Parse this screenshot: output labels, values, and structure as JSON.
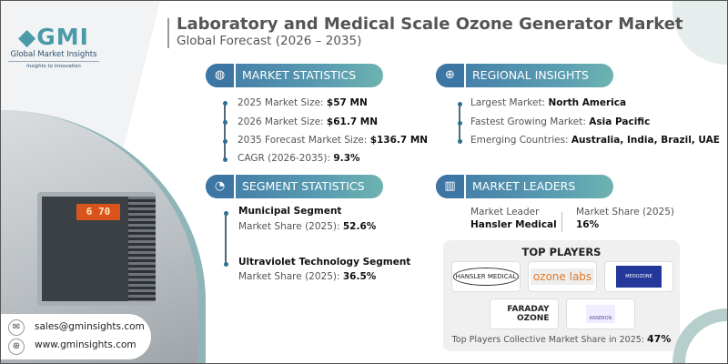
{
  "brand": {
    "logo_mark": "GMI",
    "name": "Global Market Insights",
    "tagline": "Insights to Innovation"
  },
  "header": {
    "title": "Laboratory and Medical Scale Ozone Generator Market",
    "subtitle": "Global Forecast (2026 – 2035)"
  },
  "market_statistics": {
    "label": "MARKET STATISTICS",
    "icon": "globe-chart-icon",
    "items": [
      {
        "label": "2025 Market Size: ",
        "value": "$57 MN"
      },
      {
        "label": "2026 Market Size: ",
        "value": "$61.7 MN"
      },
      {
        "label": "2035 Forecast Market Size: ",
        "value": "$136.7 MN"
      },
      {
        "label": "CAGR (2026-2035): ",
        "value": "9.3%"
      }
    ]
  },
  "regional_insights": {
    "label": "REGIONAL INSIGHTS",
    "icon": "globe-icon",
    "items": [
      {
        "label": "Largest Market: ",
        "value": "North America"
      },
      {
        "label": "Fastest Growing Market: ",
        "value": "Asia Pacific"
      },
      {
        "label": "Emerging Countries: ",
        "value": "Australia, India, Brazil, UAE"
      }
    ]
  },
  "segment_statistics": {
    "label": "SEGMENT STATISTICS",
    "icon": "segment-chart-icon",
    "items": [
      {
        "name": "Municipal Segment",
        "label": "Market Share (2025): ",
        "value": "52.6%"
      },
      {
        "name": "Ultraviolet Technology Segment",
        "label": "Market Share (2025): ",
        "value": "36.5%"
      }
    ]
  },
  "market_leaders": {
    "label": "MARKET LEADERS",
    "icon": "leader-chart-icon",
    "leader_label": "Market Leader",
    "leader": "Hansler Medical",
    "share_label": "Market Share (2025)",
    "share": "16%"
  },
  "top_players": {
    "title": "TOP PLAYERS",
    "logos": [
      "HANSLER MEDICAL",
      "ozone labs",
      "MEDOZONE",
      "FARADAY OZONE",
      "ANSERON"
    ],
    "caption": "Top Players Collective Market Share in 2025: ",
    "share": "47%"
  },
  "device_display": "6 70",
  "contact": {
    "email": "sales@gminsights.com",
    "website": "www.gminsights.com"
  },
  "colors": {
    "accent": "#3f78a6",
    "teal": "#6db3b0"
  }
}
